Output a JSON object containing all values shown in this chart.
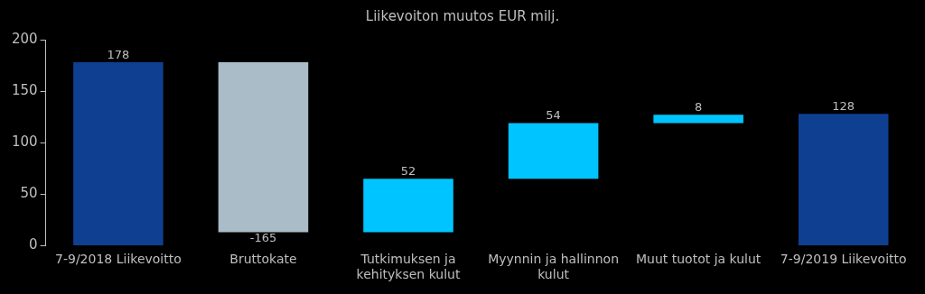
{
  "chart_data": {
    "type": "bar",
    "title": "Liikevoiton muutos EUR milj.",
    "categories": [
      "7-9/2018 Liikevoitto",
      "Bruttokate",
      "Tutkimuksen ja kehityksen kulut",
      "Myynnin ja hallinnon kulut",
      "Muut tuotot ja kulut",
      "7-9/2019 Liikevoitto"
    ],
    "values": [
      178,
      -165,
      52,
      54,
      8,
      128
    ],
    "base": [
      0,
      178,
      13,
      65,
      119,
      0
    ],
    "colors": [
      "#0f3f91",
      "#a9bcc8",
      "#00c4ff",
      "#00c4ff",
      "#00c4ff",
      "#0f3f91"
    ],
    "ylim": [
      0,
      200
    ],
    "yticks": [
      0,
      50,
      100,
      150,
      200
    ],
    "grid": false,
    "legend": false,
    "data_labels": true
  }
}
